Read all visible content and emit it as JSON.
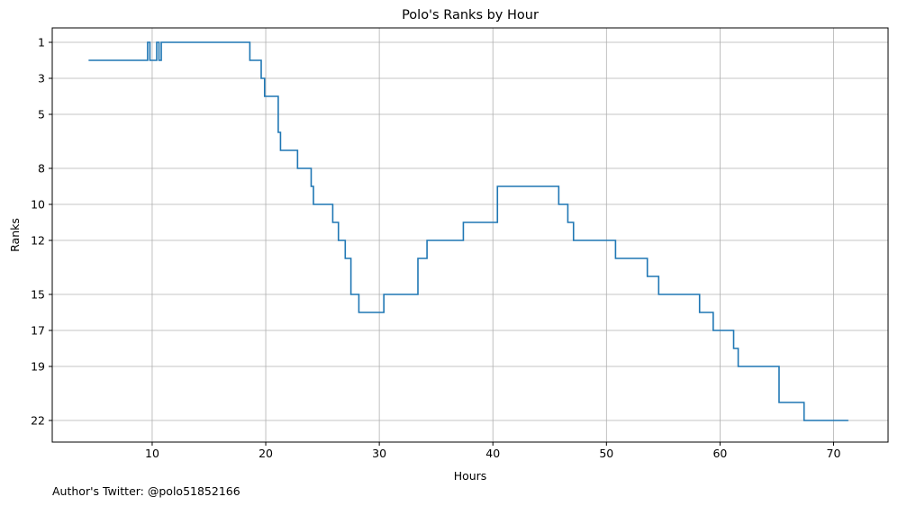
{
  "footer": {
    "note": "Author's Twitter: @polo51852166"
  },
  "colors": {
    "line": "#1f77b4",
    "grid": "#b0b0b0",
    "axis": "#000000"
  },
  "chart_data": {
    "type": "line",
    "drawstyle": "steps-post",
    "title": "Polo's Ranks by Hour",
    "xlabel": "Hours",
    "ylabel": "Ranks",
    "xlim": [
      1.2,
      74.8
    ],
    "ylim": [
      23.2,
      0.2
    ],
    "y_inverted": true,
    "grid": true,
    "xticks": [
      10,
      20,
      30,
      40,
      50,
      60,
      70
    ],
    "yticks": [
      1,
      3,
      5,
      8,
      10,
      12,
      15,
      17,
      19,
      22
    ],
    "series": [
      {
        "x": [
          4.4,
          9.6,
          9.8,
          10.4,
          10.6,
          10.8,
          18.6,
          19.6,
          19.9,
          21.1,
          21.3,
          22.8,
          24.0,
          24.2,
          25.9,
          26.4,
          27.0,
          27.5,
          28.2,
          30.4,
          33.4,
          34.2,
          37.4,
          40.4,
          45.8,
          46.6,
          47.1,
          50.8,
          53.6,
          54.6,
          58.2,
          59.4,
          61.2,
          61.6,
          65.2,
          67.4,
          71.3
        ],
        "y": [
          2,
          1,
          2,
          1,
          2,
          1,
          2,
          3,
          4,
          6,
          7,
          8,
          9,
          10,
          11,
          12,
          13,
          15,
          16,
          15,
          13,
          12,
          11,
          9,
          10,
          11,
          12,
          13,
          14,
          15,
          16,
          17,
          18,
          19,
          21,
          22,
          22
        ]
      }
    ]
  }
}
